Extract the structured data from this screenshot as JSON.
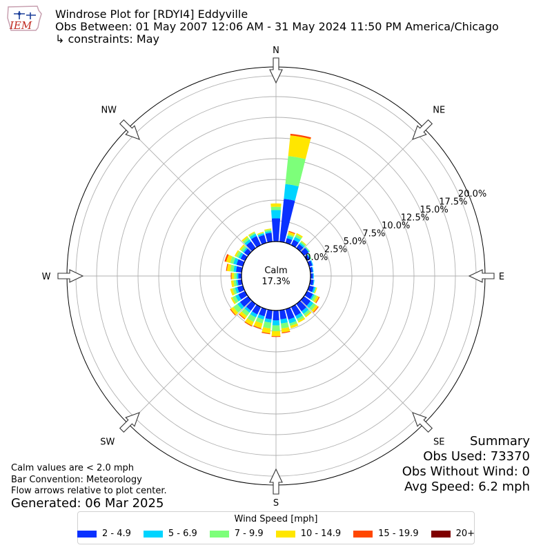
{
  "header": {
    "logo_text": "IEM",
    "title": "Windrose Plot for [RDYI4] Eddyville",
    "obs_between": "Obs Between: 01 May 2007 12:06 AM - 31 May 2024 11:50 PM America/Chicago",
    "constraints": "↳ constraints: May"
  },
  "chart_data": {
    "type": "windrose",
    "direction_labels": [
      "N",
      "NE",
      "E",
      "SE",
      "S",
      "SW",
      "W",
      "NW"
    ],
    "calm_label": "Calm",
    "calm_value": "17.3%",
    "radial_axis": {
      "tick_labels": [
        "0.0%",
        "2.5%",
        "5.0%",
        "7.5%",
        "10.0%",
        "12.5%",
        "15.0%",
        "17.5%",
        "20.0%"
      ],
      "ticks": [
        0,
        2.5,
        5,
        7.5,
        10,
        12.5,
        15,
        17.5,
        20
      ],
      "range": [
        0,
        20
      ],
      "unit": "%"
    },
    "grid": true,
    "bar_convention": "meteorology",
    "bins": [
      {
        "label": "2 - 4.9",
        "color": "#0a31ff"
      },
      {
        "label": "5 - 6.9",
        "color": "#00d4ff"
      },
      {
        "label": "7 - 9.9",
        "color": "#7dff7a"
      },
      {
        "label": "10 - 14.9",
        "color": "#ffe600"
      },
      {
        "label": "15 - 19.9",
        "color": "#ff4700"
      },
      {
        "label": "20+",
        "color": "#7f0000"
      }
    ],
    "directions_deg": [
      0,
      10,
      20,
      30,
      40,
      50,
      60,
      70,
      80,
      90,
      100,
      110,
      120,
      130,
      140,
      150,
      160,
      170,
      180,
      190,
      200,
      210,
      220,
      230,
      240,
      250,
      260,
      270,
      280,
      290,
      300,
      310,
      320,
      330,
      340,
      350
    ],
    "cumulative": [
      [
        2.8,
        3.8,
        4.2,
        4.6,
        4.6,
        4.6
      ],
      [
        5.2,
        7.0,
        10.4,
        12.9,
        13.1,
        13.1
      ],
      [
        0.6,
        0.9,
        1.1,
        1.4,
        1.5,
        1.5
      ],
      [
        0.7,
        1.1,
        1.4,
        1.6,
        1.6,
        1.6
      ],
      [
        0.6,
        0.8,
        1.0,
        1.1,
        1.1,
        1.1
      ],
      [
        0.7,
        0.8,
        0.9,
        0.9,
        0.9,
        0.9
      ],
      [
        0.4,
        0.5,
        0.6,
        0.6,
        0.6,
        0.6
      ],
      [
        0.4,
        0.5,
        0.5,
        0.5,
        0.5,
        0.5
      ],
      [
        0.3,
        0.4,
        0.4,
        0.4,
        0.4,
        0.4
      ],
      [
        0.3,
        0.4,
        0.4,
        0.4,
        0.4,
        0.4
      ],
      [
        0.4,
        0.5,
        0.5,
        0.5,
        0.5,
        0.5
      ],
      [
        0.6,
        0.8,
        0.9,
        1.0,
        1.0,
        1.0
      ],
      [
        0.8,
        1.0,
        1.3,
        1.6,
        1.7,
        1.7
      ],
      [
        1.0,
        1.4,
        1.8,
        2.1,
        2.2,
        2.2
      ],
      [
        1.1,
        1.5,
        1.8,
        2.0,
        2.0,
        2.0
      ],
      [
        1.2,
        1.6,
        1.9,
        2.1,
        2.1,
        2.1
      ],
      [
        1.3,
        1.8,
        2.1,
        2.4,
        2.4,
        2.4
      ],
      [
        1.1,
        1.6,
        2.2,
        2.7,
        2.8,
        2.8
      ],
      [
        1.2,
        1.8,
        2.5,
        3.1,
        3.2,
        3.2
      ],
      [
        1.1,
        1.5,
        2.2,
        2.8,
        2.9,
        2.9
      ],
      [
        0.9,
        1.3,
        1.8,
        2.4,
        2.5,
        2.5
      ],
      [
        1.0,
        1.4,
        2.0,
        2.5,
        2.6,
        2.6
      ],
      [
        1.0,
        1.3,
        1.8,
        2.2,
        2.3,
        2.3
      ],
      [
        1.2,
        1.6,
        2.2,
        2.6,
        2.7,
        2.7
      ],
      [
        0.9,
        1.3,
        1.7,
        1.9,
        1.9,
        1.9
      ],
      [
        0.7,
        1.0,
        1.3,
        1.6,
        1.6,
        1.6
      ],
      [
        0.5,
        0.7,
        1.0,
        1.3,
        1.3,
        1.3
      ],
      [
        0.4,
        0.6,
        0.9,
        1.2,
        1.3,
        1.3
      ],
      [
        0.7,
        1.0,
        1.4,
        1.8,
        1.9,
        1.9
      ],
      [
        0.8,
        1.2,
        1.6,
        2.1,
        2.3,
        2.3
      ],
      [
        0.6,
        0.9,
        1.2,
        1.4,
        1.4,
        1.4
      ],
      [
        0.6,
        0.8,
        1.1,
        1.3,
        1.3,
        1.3
      ],
      [
        1.0,
        1.3,
        1.6,
        1.8,
        1.8,
        1.8
      ],
      [
        1.2,
        1.5,
        1.7,
        1.8,
        1.8,
        1.8
      ],
      [
        1.0,
        1.2,
        1.3,
        1.4,
        1.4,
        1.4
      ],
      [
        1.1,
        1.3,
        1.5,
        1.6,
        1.6,
        1.6
      ]
    ]
  },
  "notes": {
    "calm": "Calm values are < 2.0 mph",
    "convention": "Bar Convention: Meteorology",
    "flow": "Flow arrows relative to plot center.",
    "generated": "Generated: 06 Mar 2025"
  },
  "summary": {
    "heading": "Summary",
    "obs_used": "Obs Used: 73370",
    "obs_without_wind": "Obs Without Wind: 0",
    "avg_speed": "Avg Speed: 6.2 mph"
  },
  "legend": {
    "title": "Wind Speed [mph]"
  }
}
